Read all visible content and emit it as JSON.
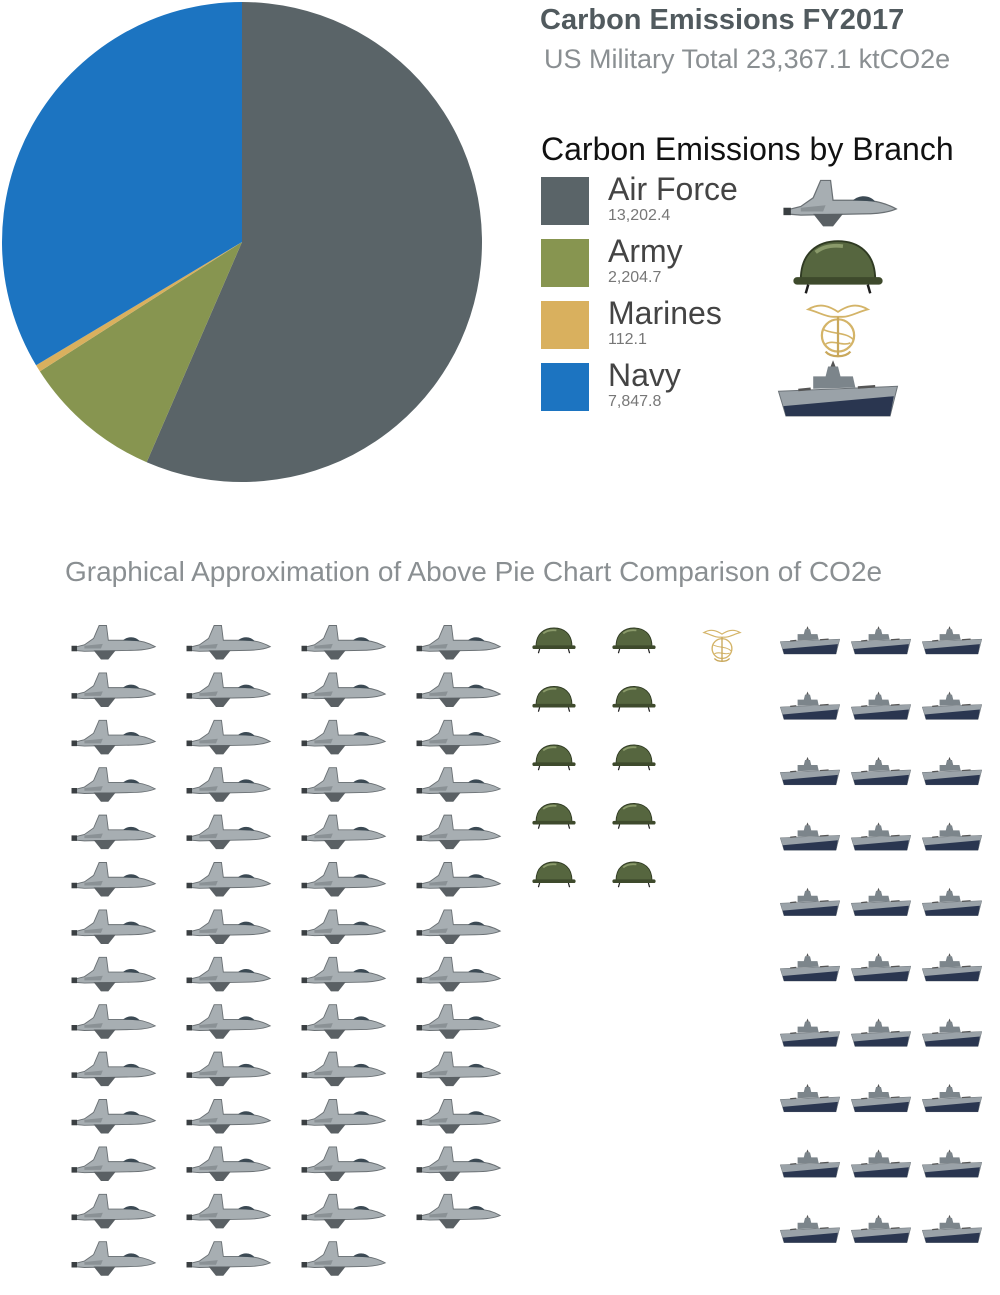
{
  "header": {
    "title": "Carbon Emissions FY2017",
    "subtitle": "US Military Total 23,367.1 ktCO2e"
  },
  "legend": {
    "title": "Carbon Emissions by Branch"
  },
  "chart_data": [
    {
      "type": "pie",
      "categories": [
        "Air Force",
        "Army",
        "Marines",
        "Navy"
      ],
      "values": [
        13202.4,
        2204.7,
        112.1,
        7847.8
      ],
      "value_labels": [
        "13,202.4",
        "2,204.7",
        "112.1",
        "7,847.8"
      ],
      "colors": [
        "#5a6468",
        "#879550",
        "#d9b05e",
        "#1c74c1"
      ],
      "icons": [
        "fighter-jet-icon",
        "army-helmet-icon",
        "marine-emblem-icon",
        "battleship-icon"
      ],
      "legend_placement": "right",
      "total": 23367.1,
      "unit": "ktCO2e"
    },
    {
      "type": "table",
      "title": "Graphical Approximation of Above Pie Chart Comparison of CO2e",
      "categories": [
        "Air Force",
        "Army",
        "Marines",
        "Navy"
      ],
      "icons": [
        "fighter-jet-icon",
        "army-helmet-icon",
        "marine-emblem-icon",
        "battleship-icon"
      ],
      "icon_counts": [
        55,
        10,
        1,
        30
      ]
    }
  ]
}
